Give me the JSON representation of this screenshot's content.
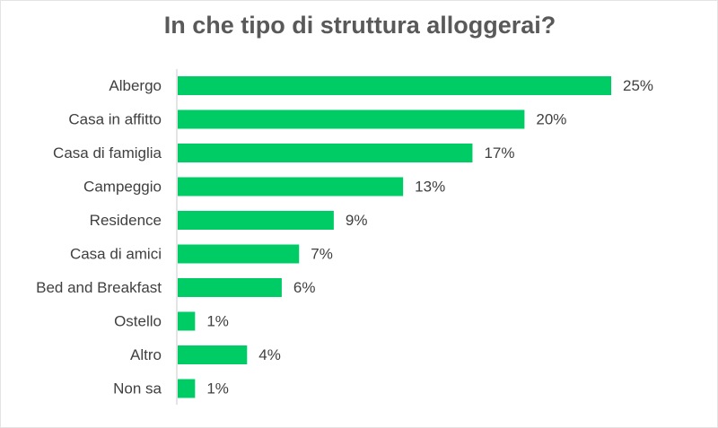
{
  "chart_data": {
    "type": "bar",
    "orientation": "horizontal",
    "title": "In che tipo di struttura alloggerai?",
    "categories": [
      "Albergo",
      "Casa in affitto",
      "Casa di famiglia",
      "Campeggio",
      "Residence",
      "Casa di amici",
      "Bed and Breakfast",
      "Ostello",
      "Altro",
      "Non sa"
    ],
    "values": [
      25,
      20,
      17,
      13,
      9,
      7,
      6,
      1,
      4,
      1
    ],
    "labels": [
      "25%",
      "20%",
      "17%",
      "13%",
      "9%",
      "7%",
      "6%",
      "1%",
      "4%",
      "1%"
    ],
    "unit": "%",
    "xlim": [
      0,
      25
    ],
    "grid": false,
    "bar_color": "#00cc66"
  }
}
